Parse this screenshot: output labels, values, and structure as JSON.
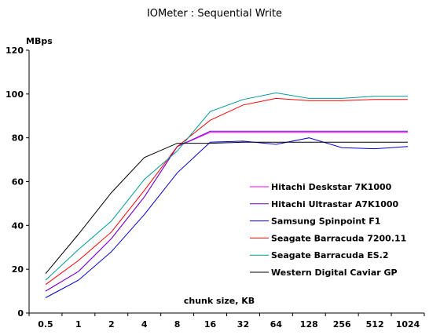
{
  "chart_data": {
    "type": "line",
    "title": "IOMeter : Sequential Write",
    "ylabel": "MBps",
    "xlabel": "chunk size, KB",
    "ylim": [
      0,
      120
    ],
    "yticks": [
      0,
      20,
      40,
      60,
      80,
      100,
      120
    ],
    "grid": false,
    "legend_position": "inside-right",
    "categories": [
      "0.5",
      "1",
      "2",
      "4",
      "8",
      "16",
      "32",
      "64",
      "128",
      "256",
      "512",
      "1024"
    ],
    "series": [
      {
        "name": "Hitachi Deskstar 7K1000",
        "color": "#ff00ff",
        "values": [
          10,
          19,
          34,
          53,
          76,
          82.5,
          82.5,
          82.5,
          82.5,
          82.5,
          82.5,
          82.5
        ]
      },
      {
        "name": "Hitachi Ultrastar A7K1000",
        "color": "#6600cc",
        "values": [
          10,
          19,
          34,
          53,
          76,
          83,
          83,
          83,
          83,
          83,
          83,
          83
        ]
      },
      {
        "name": "Samsung Spinpoint F1",
        "color": "#0000cc",
        "values": [
          7,
          15,
          28,
          45,
          64,
          78,
          78.5,
          77,
          80,
          75.5,
          75,
          76
        ]
      },
      {
        "name": "Seagate Barracuda 7200.11",
        "color": "#ff0000",
        "values": [
          13,
          24,
          37,
          56,
          76,
          88,
          95,
          98,
          97,
          97,
          97.5,
          97.5
        ]
      },
      {
        "name": "Seagate Barracuda ES.2",
        "color": "#009999",
        "values": [
          15,
          29,
          42,
          61,
          74,
          92,
          97.5,
          100.5,
          98,
          98,
          99,
          99
        ]
      },
      {
        "name": "Western Digital Caviar GP",
        "color": "#000000",
        "values": [
          18,
          36,
          55,
          71,
          77.5,
          77.5,
          78,
          78,
          78,
          78,
          78,
          78
        ]
      }
    ]
  }
}
